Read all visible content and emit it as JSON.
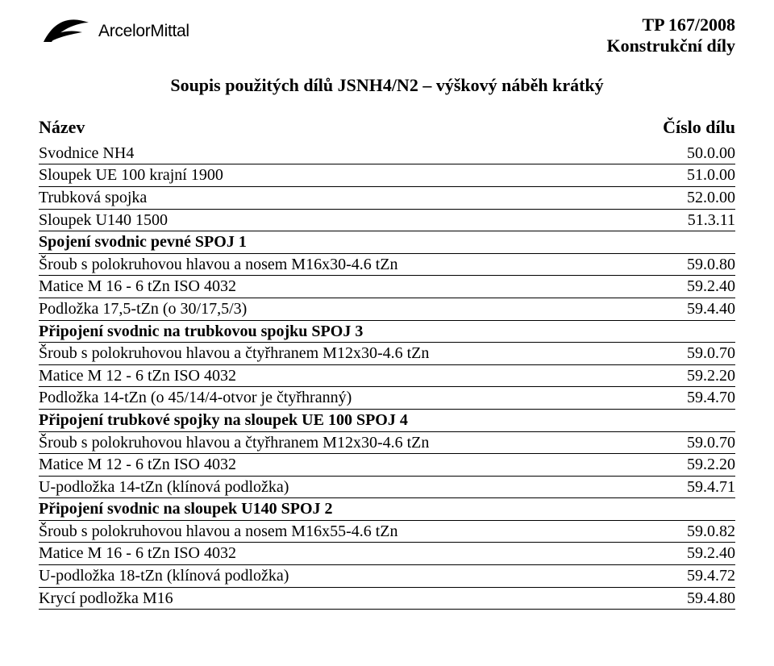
{
  "header": {
    "logo_text": "ArcelorMittal",
    "doc_ref_line1": "TP 167/2008",
    "doc_ref_line2": "Konstrukční díly"
  },
  "title": "Soupis použitých dílů JSNH4/N2 – výškový náběh krátký",
  "columns": {
    "name": "Název",
    "part_no": "Číslo dílu"
  },
  "rows": [
    {
      "type": "item",
      "label": "Svodnice NH4",
      "value": "50.0.00"
    },
    {
      "type": "item",
      "label": "Sloupek UE 100 krajní 1900",
      "value": "51.0.00"
    },
    {
      "type": "item",
      "label": "Trubková spojka",
      "value": "52.0.00"
    },
    {
      "type": "item",
      "label": "Sloupek U140 1500",
      "value": "51.3.11"
    },
    {
      "type": "section",
      "label": "Spojení svodnic pevné SPOJ 1"
    },
    {
      "type": "item",
      "label": "Šroub s polokruhovou hlavou a nosem M16x30-4.6 tZn",
      "value": "59.0.80"
    },
    {
      "type": "item",
      "label": "Matice M 16 - 6 tZn ISO 4032",
      "value": "59.2.40"
    },
    {
      "type": "item",
      "label": "Podložka 17,5-tZn (o 30/17,5/3)",
      "value": "59.4.40"
    },
    {
      "type": "section",
      "label": "Připojení svodnic na trubkovou spojku SPOJ 3"
    },
    {
      "type": "item",
      "label": "Šroub s polokruhovou hlavou a čtyřhranem M12x30-4.6 tZn",
      "value": "59.0.70"
    },
    {
      "type": "item",
      "label": "Matice M 12 - 6 tZn ISO 4032",
      "value": "59.2.20"
    },
    {
      "type": "item",
      "label": "Podložka 14-tZn (o 45/14/4-otvor je čtyřhranný)",
      "value": "59.4.70"
    },
    {
      "type": "section",
      "label": "Připojení trubkové spojky na sloupek UE 100 SPOJ 4"
    },
    {
      "type": "item",
      "label": "Šroub s polokruhovou hlavou a čtyřhranem M12x30-4.6 tZn",
      "value": "59.0.70"
    },
    {
      "type": "item",
      "label": "Matice M 12 - 6 tZn ISO 4032",
      "value": "59.2.20"
    },
    {
      "type": "item",
      "label": "U-podložka 14-tZn (klínová podložka)",
      "value": "59.4.71"
    },
    {
      "type": "section",
      "label": "Připojení svodnic na sloupek U140 SPOJ 2"
    },
    {
      "type": "item",
      "label": "Šroub s polokruhovou hlavou a nosem M16x55-4.6 tZn",
      "value": "59.0.82"
    },
    {
      "type": "item",
      "label": "Matice M 16 - 6 tZn ISO 4032",
      "value": "59.2.40"
    },
    {
      "type": "item",
      "label": "U-podložka 18-tZn (klínová podložka)",
      "value": "59.4.72"
    },
    {
      "type": "item",
      "label": "Krycí podložka M16",
      "value": "59.4.80"
    }
  ]
}
